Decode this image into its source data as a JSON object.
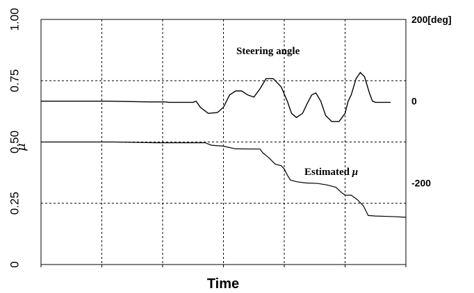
{
  "chart_data": {
    "type": "line",
    "title": "",
    "xlabel": "Time",
    "ylabel": "μ",
    "ylim": [
      0,
      1.0
    ],
    "y2lim": [
      -400,
      200
    ],
    "xlim": [
      0,
      6
    ],
    "grid": true,
    "left_ticks": [
      {
        "value": 0,
        "label": "0"
      },
      {
        "value": 0.25,
        "label": "0.25"
      },
      {
        "value": 0.5,
        "label": "0.50"
      },
      {
        "value": 0.75,
        "label": "0.75"
      },
      {
        "value": 1.0,
        "label": "1.00"
      }
    ],
    "right_ticks": [
      {
        "value": 200,
        "label": "200[deg]"
      },
      {
        "value": 0,
        "label": "0"
      },
      {
        "value": -200,
        "label": "-200"
      }
    ],
    "annotations": {
      "steering": "Steering angle",
      "estimated_prefix": "Estimated ",
      "estimated_symbol": "μ"
    },
    "series": [
      {
        "axis": "left",
        "points": [
          [
            0,
            0.5
          ],
          [
            1.2,
            0.5
          ],
          [
            1.9,
            0.497
          ],
          [
            2.7,
            0.497
          ],
          [
            2.8,
            0.487
          ],
          [
            3.0,
            0.483
          ],
          [
            3.2,
            0.472
          ],
          [
            3.6,
            0.471
          ],
          [
            3.65,
            0.455
          ],
          [
            3.75,
            0.435
          ],
          [
            3.85,
            0.41
          ],
          [
            3.95,
            0.403
          ],
          [
            4.0,
            0.39
          ],
          [
            4.05,
            0.365
          ],
          [
            4.1,
            0.345
          ],
          [
            4.2,
            0.338
          ],
          [
            4.35,
            0.333
          ],
          [
            4.55,
            0.331
          ],
          [
            4.7,
            0.325
          ],
          [
            4.85,
            0.315
          ],
          [
            4.95,
            0.292
          ],
          [
            5.0,
            0.283
          ],
          [
            5.1,
            0.283
          ],
          [
            5.2,
            0.265
          ],
          [
            5.3,
            0.24
          ],
          [
            5.38,
            0.2
          ],
          [
            5.5,
            0.198
          ],
          [
            5.75,
            0.196
          ],
          [
            6.0,
            0.193
          ]
        ]
      },
      {
        "axis": "right",
        "points": [
          [
            0,
            0
          ],
          [
            1.1,
            0
          ],
          [
            1.8,
            -2
          ],
          [
            1.82,
            -2
          ],
          [
            2.05,
            -2
          ],
          [
            2.1,
            -3
          ],
          [
            2.5,
            -3
          ],
          [
            2.55,
            0
          ],
          [
            2.62,
            -15
          ],
          [
            2.75,
            -30
          ],
          [
            2.9,
            -28
          ],
          [
            3.0,
            -15
          ],
          [
            3.1,
            15
          ],
          [
            3.2,
            25
          ],
          [
            3.3,
            25
          ],
          [
            3.4,
            15
          ],
          [
            3.5,
            10
          ],
          [
            3.6,
            30
          ],
          [
            3.7,
            55
          ],
          [
            3.82,
            55
          ],
          [
            3.95,
            35
          ],
          [
            4.05,
            0
          ],
          [
            4.12,
            -30
          ],
          [
            4.2,
            -40
          ],
          [
            4.3,
            -30
          ],
          [
            4.38,
            -5
          ],
          [
            4.45,
            15
          ],
          [
            4.52,
            20
          ],
          [
            4.6,
            0
          ],
          [
            4.68,
            -35
          ],
          [
            4.78,
            -50
          ],
          [
            4.9,
            -50
          ],
          [
            5.0,
            -30
          ],
          [
            5.05,
            0
          ],
          [
            5.1,
            15
          ],
          [
            5.18,
            55
          ],
          [
            5.25,
            70
          ],
          [
            5.32,
            60
          ],
          [
            5.4,
            20
          ],
          [
            5.45,
            0
          ],
          [
            5.5,
            -3
          ],
          [
            5.75,
            -3
          ]
        ]
      }
    ]
  }
}
